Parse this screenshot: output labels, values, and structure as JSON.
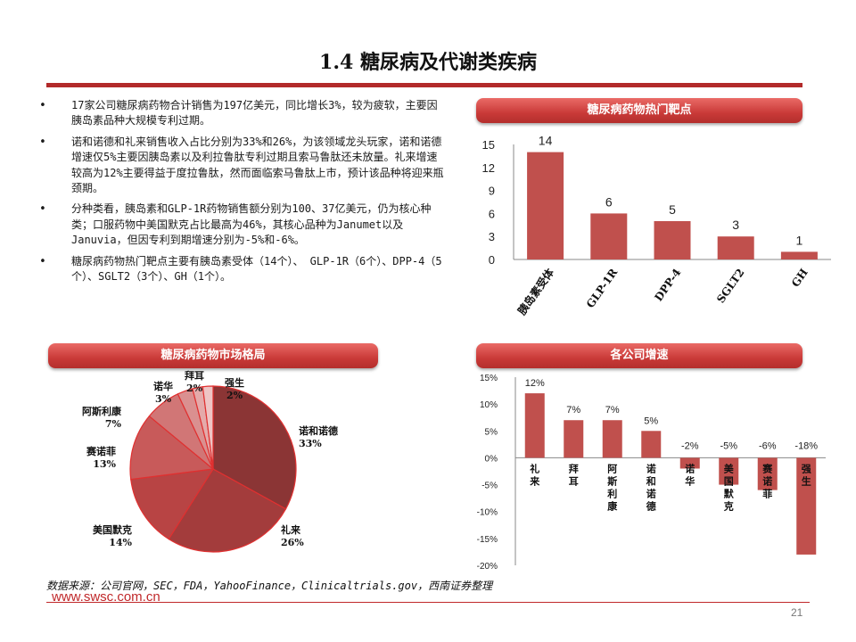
{
  "title": "1.4 糖尿病及代谢类疾病",
  "bullets": [
    "17家公司糖尿病药物合计销售为197亿美元，同比增长3%，较为疲软，主要因胰岛素品种大规模专利过期。",
    "诺和诺德和礼来销售收入占比分别为33%和26%，为该领域龙头玩家，诺和诺德增速仅5%主要因胰岛素以及利拉鲁肽专利过期且索马鲁肽还未放量。礼来增速较高为12%主要得益于度拉鲁肽，然而面临索马鲁肽上市，预计该品种将迎来瓶颈期。",
    "分种类看，胰岛素和GLP-1R药物销售额分别为100、37亿美元，仍为核心种类；口服药物中美国默克占比最高为46%，其核心品种为Janumet以及Januvia，但因专利到期增速分别为-5%和-6%。",
    "糖尿病药物热门靶点主要有胰岛素受体（14个）、 GLP-1R（6个）、DPP-4（5个）、SGLT2（3个）、GH（1个）。"
  ],
  "banners": {
    "targets": "糖尿病药物热门靶点",
    "market": "糖尿病药物市场格局",
    "growth": "各公司增速"
  },
  "source": "数据来源：公司官网，SEC，FDA，YahooFinance，Clinicaltrials.gov，西南证券整理",
  "website": "www.swsc.com.cn",
  "page_number": "21",
  "colors": {
    "accent": "#c0282a",
    "bar": "#c0504d"
  },
  "chart_data": [
    {
      "type": "bar",
      "title": "糖尿病药物热门靶点",
      "categories": [
        "胰岛素受体",
        "GLP-1R",
        "DPP-4",
        "SGLT2",
        "GH"
      ],
      "values": [
        14,
        6,
        5,
        3,
        1
      ],
      "ylim": [
        0,
        15
      ],
      "yticks": [
        0,
        3,
        6,
        9,
        12,
        15
      ],
      "data_labels": [
        "14",
        "6",
        "5",
        "3",
        "1"
      ]
    },
    {
      "type": "pie",
      "title": "糖尿病药物市场格局",
      "slices": [
        {
          "label": "诺和诺德",
          "value": 33,
          "pct": "33%",
          "color": "#8b3535"
        },
        {
          "label": "礼来",
          "value": 26,
          "pct": "26%",
          "color": "#a33c3c"
        },
        {
          "label": "美国默克",
          "value": 14,
          "pct": "14%",
          "color": "#b84444"
        },
        {
          "label": "赛诺菲",
          "value": 13,
          "pct": "13%",
          "color": "#c85a5a"
        },
        {
          "label": "阿斯利康",
          "value": 7,
          "pct": "7%",
          "color": "#d17676"
        },
        {
          "label": "诺华",
          "value": 3,
          "pct": "3%",
          "color": "#da9090"
        },
        {
          "label": "拜耳",
          "value": 2,
          "pct": "2%",
          "color": "#e4aaaa"
        },
        {
          "label": "强生",
          "value": 2,
          "pct": "2%",
          "color": "#eec5c5"
        }
      ]
    },
    {
      "type": "bar",
      "title": "各公司增速",
      "categories": [
        "礼来",
        "拜耳",
        "阿斯利康",
        "诺和诺德",
        "诺华",
        "美国默克",
        "赛诺菲",
        "强生"
      ],
      "values": [
        12,
        7,
        7,
        5,
        -2,
        -5,
        -6,
        -18
      ],
      "data_labels": [
        "12%",
        "7%",
        "7%",
        "5%",
        "-2%",
        "-5%",
        "-6%",
        "-18%"
      ],
      "ylim": [
        -20,
        15
      ],
      "yticks": [
        15,
        10,
        5,
        0,
        -5,
        -10,
        -15,
        -20
      ],
      "ytick_labels": [
        "15%",
        "10%",
        "5%",
        "0%",
        "-5%",
        "-10%",
        "-15%",
        "-20%"
      ]
    }
  ]
}
